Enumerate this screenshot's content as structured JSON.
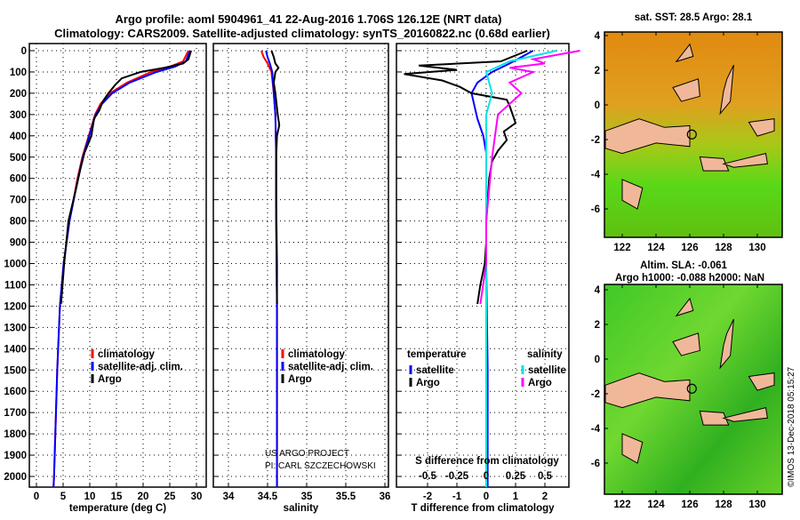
{
  "title_line1": "Argo profile: aoml 5904961_41 22-Aug-2016 1.706S 126.12E (NRT data)",
  "title_line2": "Climatology: CARS2009. Satellite-adjusted climatology: synTS_20160822.nc (0.68d earlier)",
  "colors": {
    "argo": "#000000",
    "clim": "#ff0000",
    "sat": "#0000ff",
    "sal_sat": "#00e5e5",
    "sal_argo": "#ff00ff",
    "land": "#f0b898"
  },
  "chart_data": [
    {
      "type": "line",
      "xlabel": "temperature (deg C)",
      "xticks": [
        "0",
        "5",
        "10",
        "15",
        "20",
        "25",
        "30"
      ],
      "xlim": [
        -1.5,
        31.5
      ],
      "yticks": [
        "0",
        "100",
        "200",
        "300",
        "400",
        "500",
        "600",
        "700",
        "800",
        "900",
        "1000",
        "1100",
        "1200",
        "1300",
        "1400",
        "1500",
        "1600",
        "1700",
        "1800",
        "1900",
        "2000"
      ],
      "ylim": [
        2050,
        -30
      ],
      "legend": [
        "climatology",
        "satellite-adj. clim.",
        "Argo"
      ],
      "series": [
        {
          "name": "climatology",
          "color": "clim",
          "depth": [
            0,
            50,
            75,
            100,
            150,
            200,
            250,
            300,
            400,
            500,
            600,
            800,
            1000,
            1200,
            1500,
            2000,
            2050
          ],
          "values": [
            28.5,
            27.5,
            25,
            21.5,
            17,
            13.8,
            12,
            11,
            9.8,
            8.6,
            7.7,
            6.2,
            5.1,
            4.4,
            3.9,
            3.3,
            3.2
          ]
        },
        {
          "name": "satellite-adj. clim.",
          "color": "sat",
          "depth": [
            0,
            50,
            75,
            100,
            150,
            200,
            250,
            300,
            400,
            500,
            600,
            800,
            1000,
            1200,
            1500,
            2000,
            2050
          ],
          "values": [
            28.8,
            28,
            26,
            22.5,
            17.5,
            14.2,
            12.3,
            11.1,
            9.9,
            8.7,
            7.8,
            6.2,
            5.1,
            4.4,
            3.9,
            3.3,
            3.2
          ]
        },
        {
          "name": "Argo",
          "color": "argo",
          "depth": [
            0,
            40,
            60,
            80,
            100,
            130,
            160,
            200,
            240,
            280,
            320,
            400,
            480,
            560,
            640,
            800,
            1000,
            1100,
            1190
          ],
          "values": [
            29,
            28.5,
            27.5,
            24,
            19.5,
            16,
            14.8,
            13.5,
            12.4,
            11.8,
            10.8,
            10.3,
            9,
            8.2,
            7.5,
            6,
            5.2,
            4.9,
            4.6
          ]
        }
      ]
    },
    {
      "type": "line",
      "xlabel": "salinity",
      "xticks": [
        "34",
        "34.5",
        "35",
        "35.5",
        "36"
      ],
      "xlim": [
        33.8,
        36.05
      ],
      "legend": [
        "climatology",
        "satellite-adj. clim.",
        "Argo"
      ],
      "annotation": [
        "US ARGO PROJECT",
        "PI: CARL SZCZECHOWSKI"
      ],
      "series": [
        {
          "name": "climatology",
          "color": "clim",
          "depth": [
            0,
            30,
            60,
            100,
            200,
            300,
            500,
            800,
            1200,
            2050
          ],
          "values": [
            34.42,
            34.45,
            34.5,
            34.55,
            34.58,
            34.6,
            34.61,
            34.61,
            34.62,
            34.62
          ]
        },
        {
          "name": "satellite-adj. clim.",
          "color": "sat",
          "depth": [
            0,
            30,
            60,
            100,
            200,
            300,
            500,
            800,
            1200,
            2050
          ],
          "values": [
            34.48,
            34.5,
            34.53,
            34.56,
            34.58,
            34.6,
            34.61,
            34.61,
            34.62,
            34.62
          ]
        },
        {
          "name": "Argo",
          "color": "argo",
          "depth": [
            0,
            30,
            60,
            80,
            100,
            150,
            200,
            300,
            350,
            400,
            500,
            700,
            1000,
            1190
          ],
          "values": [
            34.55,
            34.58,
            34.6,
            34.64,
            34.6,
            34.58,
            34.6,
            34.63,
            34.65,
            34.62,
            34.61,
            34.61,
            34.62,
            34.62
          ]
        }
      ]
    },
    {
      "type": "line",
      "xlabel": "T difference from climatology",
      "xticks": [
        "-2",
        "-1",
        "0",
        "1",
        "2"
      ],
      "xlim": [
        -3.1,
        2.9
      ],
      "x2label": "S difference from climatology",
      "x2ticks": [
        "-0.5",
        "-0.25",
        "0",
        "0.25",
        "0.5"
      ],
      "legend_left_title": "temperature",
      "legend_left": [
        "satellite",
        "Argo"
      ],
      "legend_right_title": "salinity",
      "legend_right": [
        "satellite",
        "Argo"
      ],
      "series": [
        {
          "name": "temperature satellite",
          "color": "sat",
          "depth": [
            0,
            60,
            100,
            150,
            200,
            260,
            320,
            400,
            480,
            600,
            800,
            1000,
            1500,
            2050
          ],
          "values": [
            1.6,
            0.8,
            0.2,
            -0.3,
            -0.5,
            -0.4,
            -0.3,
            -0.1,
            0,
            0,
            0,
            0,
            0.05,
            0.05
          ]
        },
        {
          "name": "temperature Argo",
          "color": "argo",
          "depth": [
            0,
            50,
            70,
            90,
            110,
            140,
            170,
            200,
            230,
            260,
            300,
            340,
            380,
            420,
            470,
            520,
            600,
            700,
            800,
            900,
            1000,
            1100,
            1190
          ],
          "values": [
            1.4,
            0.5,
            -2.3,
            -1,
            -2.8,
            -1.5,
            -0.9,
            -0.5,
            0.7,
            0.8,
            0.9,
            1.0,
            0.6,
            0.7,
            0.4,
            0.2,
            0.1,
            0.05,
            0,
            0,
            -0.05,
            -0.2,
            -0.3
          ]
        },
        {
          "name": "salinity satellite",
          "color": "sal_sat",
          "depth": [
            0,
            50,
            100,
            200,
            300,
            500,
            800,
            1200,
            2050
          ],
          "values": [
            0.6,
            0.2,
            0,
            0.05,
            0,
            0,
            0,
            0,
            0
          ]
        },
        {
          "name": "salinity Argo",
          "color": "sal_argo",
          "depth": [
            0,
            40,
            60,
            80,
            100,
            150,
            200,
            300,
            500,
            800,
            1000,
            1190
          ],
          "values": [
            0.8,
            0.4,
            0.5,
            0.2,
            0.4,
            0.2,
            0.3,
            0.1,
            0.05,
            0,
            0,
            -0.05
          ]
        }
      ]
    },
    {
      "type": "heatmap",
      "title": "sat. SST: 28.5 Argo: 28.1",
      "xticks": [
        "122",
        "124",
        "126",
        "128",
        "130"
      ],
      "yticks": [
        "4",
        "2",
        "0",
        "-2",
        "-4",
        "-6"
      ]
    },
    {
      "type": "heatmap",
      "title_line1": "Altim. SLA: -0.061",
      "title_line2": "Argo h1000: -0.088 h2000: NaN",
      "xticks": [
        "122",
        "124",
        "126",
        "128",
        "130"
      ],
      "yticks": [
        "4",
        "2",
        "0",
        "-2",
        "-4",
        "-6"
      ],
      "credit": "©IMOS 13-Dec-2018 05:15:27"
    }
  ]
}
